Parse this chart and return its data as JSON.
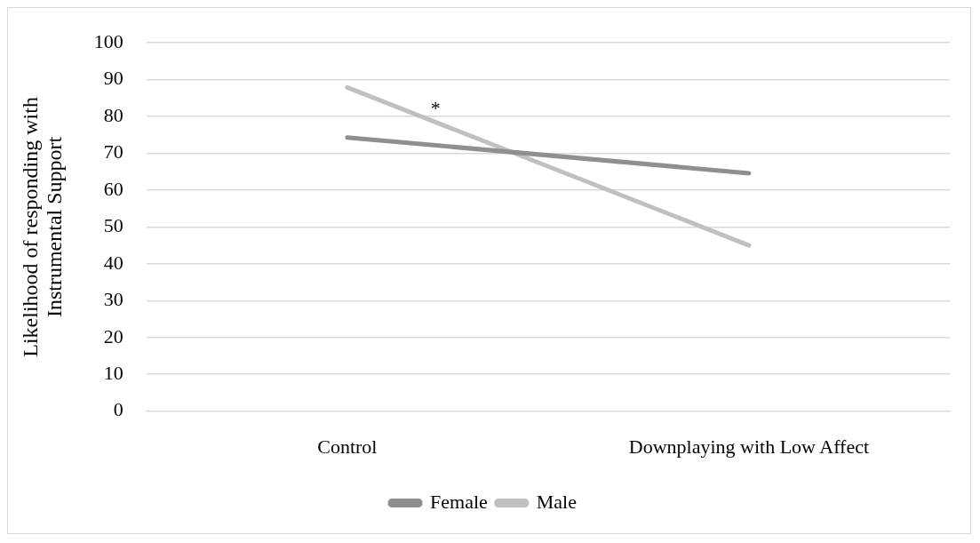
{
  "chart_data": {
    "type": "line",
    "ylabel": "Likelihood of responding with Instrumental Support",
    "categories": [
      "Control",
      "Downplaying with Low Affect"
    ],
    "series": [
      {
        "name": "Female",
        "color": "#8f8f8f",
        "values": [
          74.3,
          64.6
        ]
      },
      {
        "name": "Male",
        "color": "#c0c0c0",
        "values": [
          87.9,
          45.0
        ]
      }
    ],
    "ylim": [
      0,
      100
    ],
    "yticks": [
      0,
      10,
      20,
      30,
      40,
      50,
      60,
      70,
      80,
      90,
      100
    ],
    "grid": "y",
    "legend": "bottom",
    "marker": "none",
    "line_style": "solid",
    "annotations": [
      "*"
    ]
  }
}
